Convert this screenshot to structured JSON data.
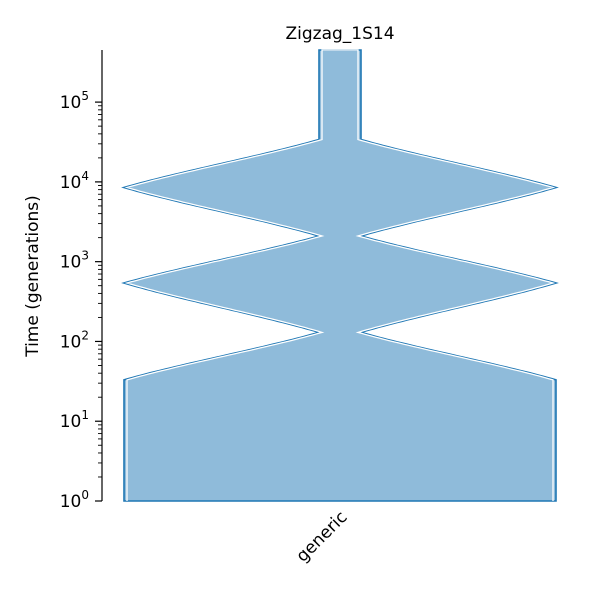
{
  "chart_data": {
    "type": "area",
    "title": "Zigzag_1S14",
    "xlabel": "",
    "ylabel": "Time (generations)",
    "yscale": "log",
    "ylim": [
      1,
      450000
    ],
    "yticks": [
      {
        "value": 1,
        "base": "10",
        "exp": "0"
      },
      {
        "value": 10,
        "base": "10",
        "exp": "1"
      },
      {
        "value": 100,
        "base": "10",
        "exp": "2"
      },
      {
        "value": 1000,
        "base": "10",
        "exp": "3"
      },
      {
        "value": 10000,
        "base": "10",
        "exp": "4"
      },
      {
        "value": 100000,
        "base": "10",
        "exp": "5"
      }
    ],
    "categories": [
      "generic"
    ],
    "fill_color": "#8fbbda",
    "edge_color": "#1f77b4",
    "width_scale": "log",
    "wmax": 14000,
    "wmin": 1000,
    "profile": [
      {
        "t": 1,
        "N": 14000
      },
      {
        "t": 33,
        "N": 14000
      },
      {
        "t": 130,
        "N": 1000
      },
      {
        "t": 540,
        "N": 14000
      },
      {
        "t": 2100,
        "N": 1000
      },
      {
        "t": 8500,
        "N": 14000
      },
      {
        "t": 34000,
        "N": 1000
      },
      {
        "t": 450000,
        "N": 1000
      }
    ]
  }
}
